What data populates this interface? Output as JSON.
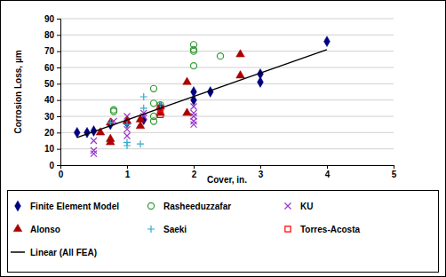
{
  "chart_data": {
    "type": "scatter",
    "x_label": "Cover, in.",
    "y_label": "Corrosion Loss, µm",
    "xlim": [
      0,
      5
    ],
    "ylim": [
      0,
      90
    ],
    "xticks": [
      0,
      1,
      2,
      3,
      4,
      5
    ],
    "yticks": [
      0,
      10,
      20,
      30,
      40,
      50,
      60,
      70,
      80,
      90
    ],
    "grid": true,
    "legend": "bottom",
    "series": [
      {
        "name": "Finite Element Model",
        "color": "#000080",
        "marker": "diamond",
        "type": "scatter",
        "x": [
          0.25,
          0.4,
          0.5,
          0.75,
          1,
          1.25,
          1.5,
          2,
          2,
          2.25,
          3,
          3,
          4
        ],
        "values": [
          20,
          20,
          21,
          25,
          26,
          28,
          35,
          40,
          45,
          45,
          51,
          56,
          76
        ]
      },
      {
        "name": "Rasheeduzzafar",
        "color": "#339933",
        "marker": "open-circle",
        "type": "scatter",
        "x": [
          0.8,
          0.8,
          1.4,
          1.4,
          1.4,
          1.4,
          1.5,
          2,
          2,
          2,
          2,
          2.4
        ],
        "values": [
          33,
          34,
          47,
          38,
          30,
          27,
          37,
          74,
          71,
          70,
          61,
          67
        ]
      },
      {
        "name": "KU",
        "color": "#9933cc",
        "marker": "x",
        "type": "scatter",
        "x": [
          0.5,
          0.5,
          0.5,
          0.8,
          1,
          1,
          1,
          1.25,
          1.25,
          1.5,
          2,
          2,
          2,
          2,
          2
        ],
        "values": [
          15,
          9,
          7,
          27,
          22,
          18,
          30,
          30,
          32,
          33,
          36,
          32,
          30,
          27,
          25
        ]
      },
      {
        "name": "Alonso",
        "color": "#aa0000",
        "marker": "triangle",
        "type": "scatter",
        "x": [
          0.6,
          0.75,
          0.75,
          0.75,
          1,
          1.2,
          1.2,
          1.5,
          1.5,
          1.9,
          1.9,
          2.7,
          2.7
        ],
        "values": [
          20,
          16,
          14,
          26,
          27,
          24,
          28,
          32,
          36,
          51,
          32,
          68,
          55
        ]
      },
      {
        "name": "Saeki",
        "color": "#33aacc",
        "marker": "plus",
        "type": "scatter",
        "x": [
          0.75,
          1,
          1,
          1,
          1.2,
          1.25,
          1.25,
          1.5
        ],
        "values": [
          26,
          25,
          14,
          12,
          13,
          42,
          35,
          37
        ]
      },
      {
        "name": "Torres-Acosta",
        "color": "#ff0000",
        "marker": "open-square",
        "type": "scatter",
        "x": [
          1.5,
          1.5
        ],
        "values": [
          35,
          31
        ]
      },
      {
        "name": "Linear (All FEA)",
        "color": "#000000",
        "marker": "none",
        "type": "line",
        "line_style": "solid",
        "x": [
          0.25,
          4
        ],
        "values": [
          17,
          71
        ]
      }
    ]
  }
}
